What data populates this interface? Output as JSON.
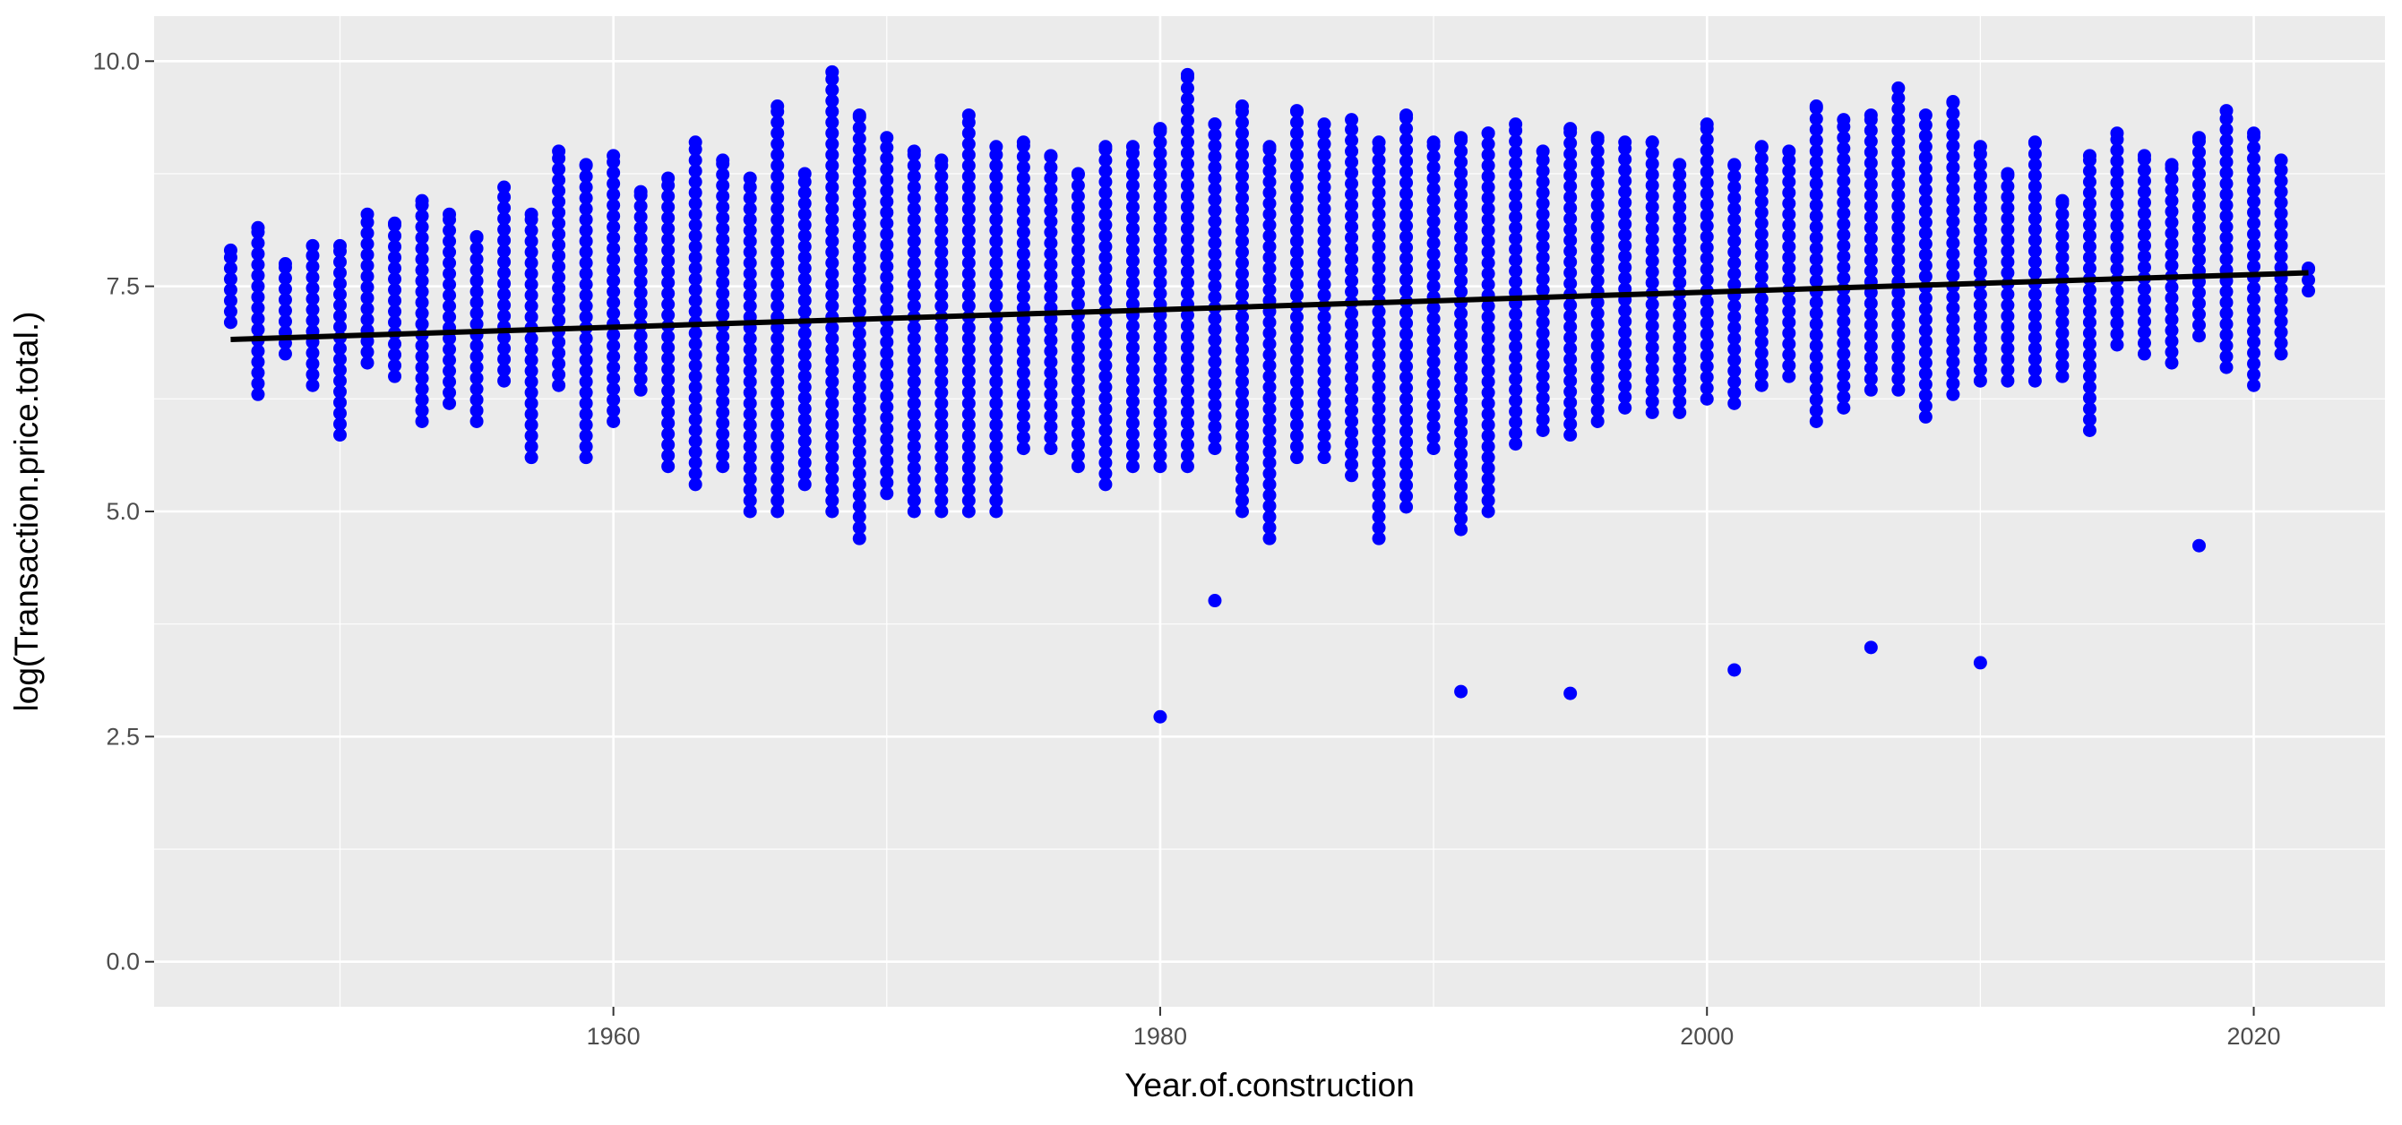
{
  "chart_data": {
    "type": "scatter",
    "title": "",
    "xlabel": "Year.of.construction",
    "ylabel": "log(Transaction.price.total.)",
    "xlim": [
      1943.2,
      2024.8
    ],
    "ylim": [
      -0.5,
      10.5
    ],
    "x_ticks": [
      1960,
      1980,
      2000,
      2020
    ],
    "x_tick_labels": [
      "1960",
      "1980",
      "2000",
      "2020"
    ],
    "y_ticks": [
      0,
      2.5,
      5,
      7.5,
      10
    ],
    "y_tick_labels": [
      "0.0",
      "2.5",
      "5.0",
      "7.5",
      "10.0"
    ],
    "grid": true,
    "legend": "none",
    "colors": {
      "panel": "#ebebeb",
      "grid": "#ffffff",
      "points": "#0000ff",
      "trend": "#000000"
    },
    "point_columns": [
      {
        "x": 1946,
        "min": 7.1,
        "max": 7.9
      },
      {
        "x": 1947,
        "min": 6.3,
        "max": 8.15
      },
      {
        "x": 1948,
        "min": 6.75,
        "max": 7.75
      },
      {
        "x": 1949,
        "min": 6.4,
        "max": 7.95
      },
      {
        "x": 1950,
        "min": 5.85,
        "max": 7.95
      },
      {
        "x": 1951,
        "min": 6.65,
        "max": 8.3
      },
      {
        "x": 1952,
        "min": 6.5,
        "max": 8.2
      },
      {
        "x": 1953,
        "min": 6.0,
        "max": 8.45
      },
      {
        "x": 1954,
        "min": 6.2,
        "max": 8.3
      },
      {
        "x": 1955,
        "min": 6.0,
        "max": 8.05
      },
      {
        "x": 1956,
        "min": 6.45,
        "max": 8.6
      },
      {
        "x": 1957,
        "min": 5.6,
        "max": 8.3
      },
      {
        "x": 1958,
        "min": 6.4,
        "max": 9.0
      },
      {
        "x": 1959,
        "min": 5.6,
        "max": 8.85
      },
      {
        "x": 1960,
        "min": 6.0,
        "max": 8.95
      },
      {
        "x": 1961,
        "min": 6.35,
        "max": 8.55
      },
      {
        "x": 1962,
        "min": 5.5,
        "max": 8.7
      },
      {
        "x": 1963,
        "min": 5.3,
        "max": 9.1
      },
      {
        "x": 1964,
        "min": 5.5,
        "max": 8.9
      },
      {
        "x": 1965,
        "min": 5.0,
        "max": 8.7
      },
      {
        "x": 1966,
        "min": 5.0,
        "max": 9.5
      },
      {
        "x": 1967,
        "min": 5.3,
        "max": 8.75
      },
      {
        "x": 1968,
        "min": 5.0,
        "max": 9.88
      },
      {
        "x": 1969,
        "min": 4.7,
        "max": 9.4
      },
      {
        "x": 1970,
        "min": 5.2,
        "max": 9.15
      },
      {
        "x": 1971,
        "min": 5.0,
        "max": 9.0
      },
      {
        "x": 1972,
        "min": 5.0,
        "max": 8.9
      },
      {
        "x": 1973,
        "min": 5.0,
        "max": 9.4
      },
      {
        "x": 1974,
        "min": 5.0,
        "max": 9.05
      },
      {
        "x": 1975,
        "min": 5.7,
        "max": 9.1
      },
      {
        "x": 1976,
        "min": 5.7,
        "max": 8.95
      },
      {
        "x": 1977,
        "min": 5.5,
        "max": 8.75
      },
      {
        "x": 1978,
        "min": 5.3,
        "max": 9.05
      },
      {
        "x": 1979,
        "min": 5.5,
        "max": 9.05
      },
      {
        "x": 1980,
        "min": 5.5,
        "max": 9.25
      },
      {
        "x": 1981,
        "min": 5.5,
        "max": 9.85
      },
      {
        "x": 1982,
        "min": 5.7,
        "max": 9.3
      },
      {
        "x": 1983,
        "min": 5.0,
        "max": 9.5
      },
      {
        "x": 1984,
        "min": 4.7,
        "max": 9.05
      },
      {
        "x": 1985,
        "min": 5.6,
        "max": 9.45
      },
      {
        "x": 1986,
        "min": 5.6,
        "max": 9.3
      },
      {
        "x": 1987,
        "min": 5.4,
        "max": 9.35
      },
      {
        "x": 1988,
        "min": 4.7,
        "max": 9.1
      },
      {
        "x": 1989,
        "min": 5.05,
        "max": 9.4
      },
      {
        "x": 1990,
        "min": 5.7,
        "max": 9.1
      },
      {
        "x": 1991,
        "min": 4.8,
        "max": 9.15
      },
      {
        "x": 1992,
        "min": 5.0,
        "max": 9.2
      },
      {
        "x": 1993,
        "min": 5.75,
        "max": 9.3
      },
      {
        "x": 1994,
        "min": 5.9,
        "max": 9.0
      },
      {
        "x": 1995,
        "min": 5.85,
        "max": 9.25
      },
      {
        "x": 1996,
        "min": 6.0,
        "max": 9.15
      },
      {
        "x": 1997,
        "min": 6.15,
        "max": 9.1
      },
      {
        "x": 1998,
        "min": 6.1,
        "max": 9.1
      },
      {
        "x": 1999,
        "min": 6.1,
        "max": 8.85
      },
      {
        "x": 2000,
        "min": 6.25,
        "max": 9.3
      },
      {
        "x": 2001,
        "min": 6.2,
        "max": 8.85
      },
      {
        "x": 2002,
        "min": 6.4,
        "max": 9.05
      },
      {
        "x": 2003,
        "min": 6.5,
        "max": 9.0
      },
      {
        "x": 2004,
        "min": 6.0,
        "max": 9.5
      },
      {
        "x": 2005,
        "min": 6.15,
        "max": 9.35
      },
      {
        "x": 2006,
        "min": 6.35,
        "max": 9.4
      },
      {
        "x": 2007,
        "min": 6.35,
        "max": 9.7
      },
      {
        "x": 2008,
        "min": 6.05,
        "max": 9.4
      },
      {
        "x": 2009,
        "min": 6.3,
        "max": 9.55
      },
      {
        "x": 2010,
        "min": 6.45,
        "max": 9.05
      },
      {
        "x": 2011,
        "min": 6.45,
        "max": 8.75
      },
      {
        "x": 2012,
        "min": 6.45,
        "max": 9.1
      },
      {
        "x": 2013,
        "min": 6.5,
        "max": 8.45
      },
      {
        "x": 2014,
        "min": 5.9,
        "max": 8.95
      },
      {
        "x": 2015,
        "min": 6.85,
        "max": 9.2
      },
      {
        "x": 2016,
        "min": 6.75,
        "max": 8.95
      },
      {
        "x": 2017,
        "min": 6.65,
        "max": 8.85
      },
      {
        "x": 2018,
        "min": 6.95,
        "max": 9.15
      },
      {
        "x": 2019,
        "min": 6.6,
        "max": 9.45
      },
      {
        "x": 2020,
        "min": 6.4,
        "max": 9.2
      },
      {
        "x": 2021,
        "min": 6.75,
        "max": 8.9
      },
      {
        "x": 2022,
        "min": 7.45,
        "max": 7.7
      }
    ],
    "outliers": [
      {
        "x": 1980,
        "y": 2.72
      },
      {
        "x": 1982,
        "y": 4.01
      },
      {
        "x": 1991,
        "y": 3.0
      },
      {
        "x": 1995,
        "y": 2.98
      },
      {
        "x": 2001,
        "y": 3.24
      },
      {
        "x": 2006,
        "y": 3.49
      },
      {
        "x": 2010,
        "y": 3.32
      },
      {
        "x": 2018,
        "y": 4.62
      }
    ],
    "trend_line": {
      "x": [
        1946,
        2022
      ],
      "y": [
        6.91,
        7.65
      ]
    }
  }
}
